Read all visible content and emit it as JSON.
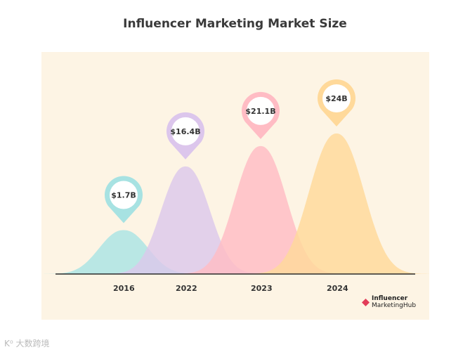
{
  "chart_data": {
    "type": "area",
    "title": "Influencer Marketing Market Size",
    "categories": [
      "2016",
      "2022",
      "2023",
      "2024"
    ],
    "values": [
      1.7,
      16.4,
      21.1,
      24
    ],
    "value_labels": [
      "$1.7B",
      "$16.4B",
      "$21.1B",
      "$24B"
    ],
    "unit": "$B",
    "colors": [
      "#a9e4e4",
      "#dcc8ec",
      "#ffbcc4",
      "#ffd99a"
    ],
    "pin_colors": [
      "#a7e2e2",
      "#dcc6ec",
      "#ffbcc4",
      "#ffd99a"
    ],
    "background": "#fdf4e4",
    "grid": false,
    "legend": "none"
  },
  "brand": {
    "line1": "Influencer",
    "line2": "MarketingHub",
    "accent": "#e23d59"
  },
  "watermark": "K⁰ 大数跨境"
}
